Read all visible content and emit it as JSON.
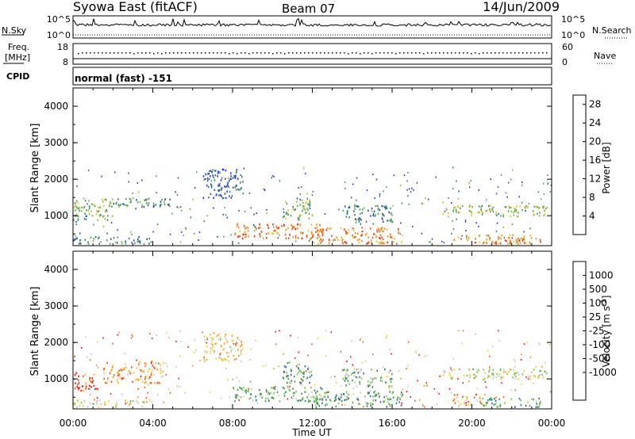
{
  "header": {
    "radar_name": "Syowa East (fitACF)",
    "beam": "Beam 07",
    "date": "14/Jun/2009"
  },
  "labels": {
    "nsky": "N.Sky",
    "nsearch": "N.Search",
    "freq_line1": "Freq.",
    "freq_line2": "[MHz]",
    "nave": "Nave",
    "cpid": "CPID",
    "cpid_value": "normal (fast) -151",
    "power_label": "Power [dB]",
    "velocity_label": "Velocity [m s",
    "velocity_exp": "-1",
    "velocity_close": "]",
    "tick_1e5": "10^5",
    "tick_1e0": "10^0",
    "freq_top": "18",
    "freq_bottom": "8",
    "nave_top": "60",
    "nave_bottom": "0"
  },
  "colors": {
    "power_scale": [
      "#1f3cff",
      "#2850a8",
      "#3c7a6e",
      "#4fa15a",
      "#86c43e",
      "#e8c22a",
      "#ff8c1e",
      "#ff5a14",
      "#ff1e0a"
    ],
    "velocity_scale": [
      "#ff1414",
      "#ff5a14",
      "#ff9a1e",
      "#ffc83c",
      "#c8c8c8",
      "#78c850",
      "#3fa03c",
      "#2d7a6e",
      "#2d5ab4",
      "#1a2ee6"
    ]
  },
  "chart_data": [
    {
      "type": "heatmap",
      "title": "Power",
      "xlabel": "Time UT",
      "ylabel": "Slant Range [km]",
      "x_ticks": [
        "00:00",
        "04:00",
        "08:00",
        "12:00",
        "16:00",
        "20:00",
        "00:00"
      ],
      "xlim_hours": [
        0,
        24
      ],
      "y_ticks": [
        "1000",
        "2000",
        "3000",
        "4000"
      ],
      "ylim": [
        180,
        4500
      ],
      "colorbar_label": "Power [dB]",
      "colorbar_ticks": [
        "4",
        "8",
        "12",
        "16",
        "20",
        "24",
        "28"
      ],
      "colorbar_range": [
        0,
        30
      ],
      "regions": [
        {
          "t": [
            0.0,
            2.0
          ],
          "r": [
            900,
            1500
          ],
          "level": 0.45
        },
        {
          "t": [
            2.0,
            5.0
          ],
          "r": [
            1200,
            1500
          ],
          "level": 0.35
        },
        {
          "t": [
            0.0,
            4.0
          ],
          "r": [
            250,
            450
          ],
          "level": 0.3
        },
        {
          "t": [
            6.5,
            8.5
          ],
          "r": [
            1500,
            2300
          ],
          "level": 0.15
        },
        {
          "t": [
            8.0,
            12.5
          ],
          "r": [
            400,
            800
          ],
          "level": 0.8
        },
        {
          "t": [
            10.5,
            12.0
          ],
          "r": [
            900,
            1500
          ],
          "level": 0.45
        },
        {
          "t": [
            12.0,
            16.5
          ],
          "r": [
            250,
            700
          ],
          "level": 0.75
        },
        {
          "t": [
            13.5,
            16.0
          ],
          "r": [
            800,
            1300
          ],
          "level": 0.3
        },
        {
          "t": [
            18.5,
            23.8
          ],
          "r": [
            1000,
            1300
          ],
          "level": 0.5
        },
        {
          "t": [
            19.0,
            23.5
          ],
          "r": [
            250,
            500
          ],
          "level": 0.7
        },
        {
          "t": [
            21.0,
            23.0
          ],
          "r": [
            250,
            350
          ],
          "level": 0.9
        }
      ]
    },
    {
      "type": "heatmap",
      "title": "Velocity",
      "xlabel": "Time UT",
      "ylabel": "Slant Range [km]",
      "x_ticks": [
        "00:00",
        "04:00",
        "08:00",
        "12:00",
        "16:00",
        "20:00",
        "00:00"
      ],
      "xlim_hours": [
        0,
        24
      ],
      "y_ticks": [
        "1000",
        "2000",
        "3000",
        "4000"
      ],
      "ylim": [
        180,
        4500
      ],
      "colorbar_label": "Velocity [m s^-1]",
      "colorbar_ticks": [
        "1000",
        "500",
        "100",
        "25",
        "-25",
        "-100",
        "-500",
        "-1000"
      ],
      "regions": [
        {
          "t": [
            0.0,
            1.2
          ],
          "r": [
            700,
            1200
          ],
          "level": 0.1
        },
        {
          "t": [
            1.5,
            4.5
          ],
          "r": [
            900,
            1500
          ],
          "level": 0.25
        },
        {
          "t": [
            0.0,
            4.0
          ],
          "r": [
            250,
            450
          ],
          "level": 0.45
        },
        {
          "t": [
            6.5,
            8.5
          ],
          "r": [
            1500,
            2300
          ],
          "level": 0.35
        },
        {
          "t": [
            8.0,
            12.5
          ],
          "r": [
            400,
            800
          ],
          "level": 0.6
        },
        {
          "t": [
            10.5,
            12.0
          ],
          "r": [
            900,
            1500
          ],
          "level": 0.65
        },
        {
          "t": [
            12.0,
            16.5
          ],
          "r": [
            250,
            700
          ],
          "level": 0.65
        },
        {
          "t": [
            13.5,
            16.0
          ],
          "r": [
            800,
            1300
          ],
          "level": 0.6
        },
        {
          "t": [
            18.5,
            23.8
          ],
          "r": [
            1000,
            1300
          ],
          "level": 0.45
        },
        {
          "t": [
            19.0,
            20.5
          ],
          "r": [
            300,
            600
          ],
          "level": 0.25
        },
        {
          "t": [
            20.5,
            23.5
          ],
          "r": [
            250,
            500
          ],
          "level": 0.65
        }
      ]
    }
  ]
}
